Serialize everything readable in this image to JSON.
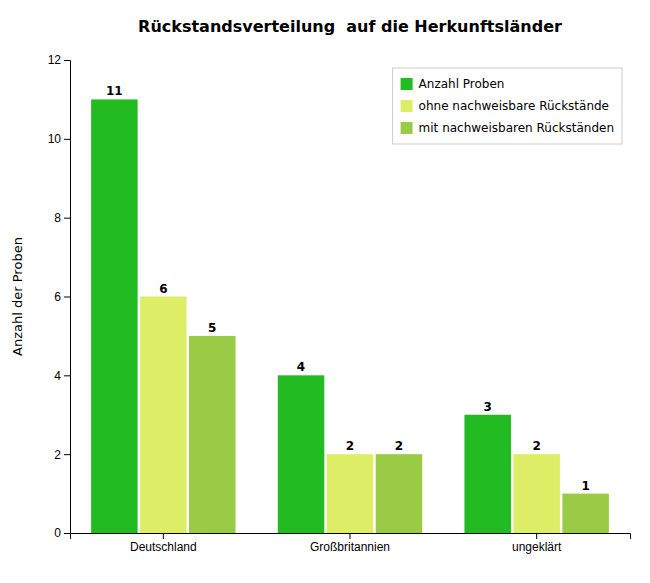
{
  "chart_data": {
    "type": "bar",
    "title": "Rückstandsverteilung  auf die Herkunftsländer",
    "ylabel": "Anzahl der Proben",
    "categories": [
      "Deutschland",
      "Großbritannien",
      "ungeklärt"
    ],
    "series": [
      {
        "name": "Anzahl Proben",
        "color": "#22bb22",
        "values": [
          11,
          4,
          3
        ]
      },
      {
        "name": "ohne nachweisbare Rückstände",
        "color": "#ddee66",
        "values": [
          6,
          2,
          2
        ]
      },
      {
        "name": "mit nachweisbaren Rückständen",
        "color": "#99cc44",
        "values": [
          5,
          2,
          1
        ]
      }
    ],
    "ylim": [
      0,
      12
    ],
    "yticks": [
      0,
      2,
      4,
      6,
      8,
      10,
      12
    ],
    "grid": false,
    "legend": "top-right",
    "data_labels": true
  }
}
